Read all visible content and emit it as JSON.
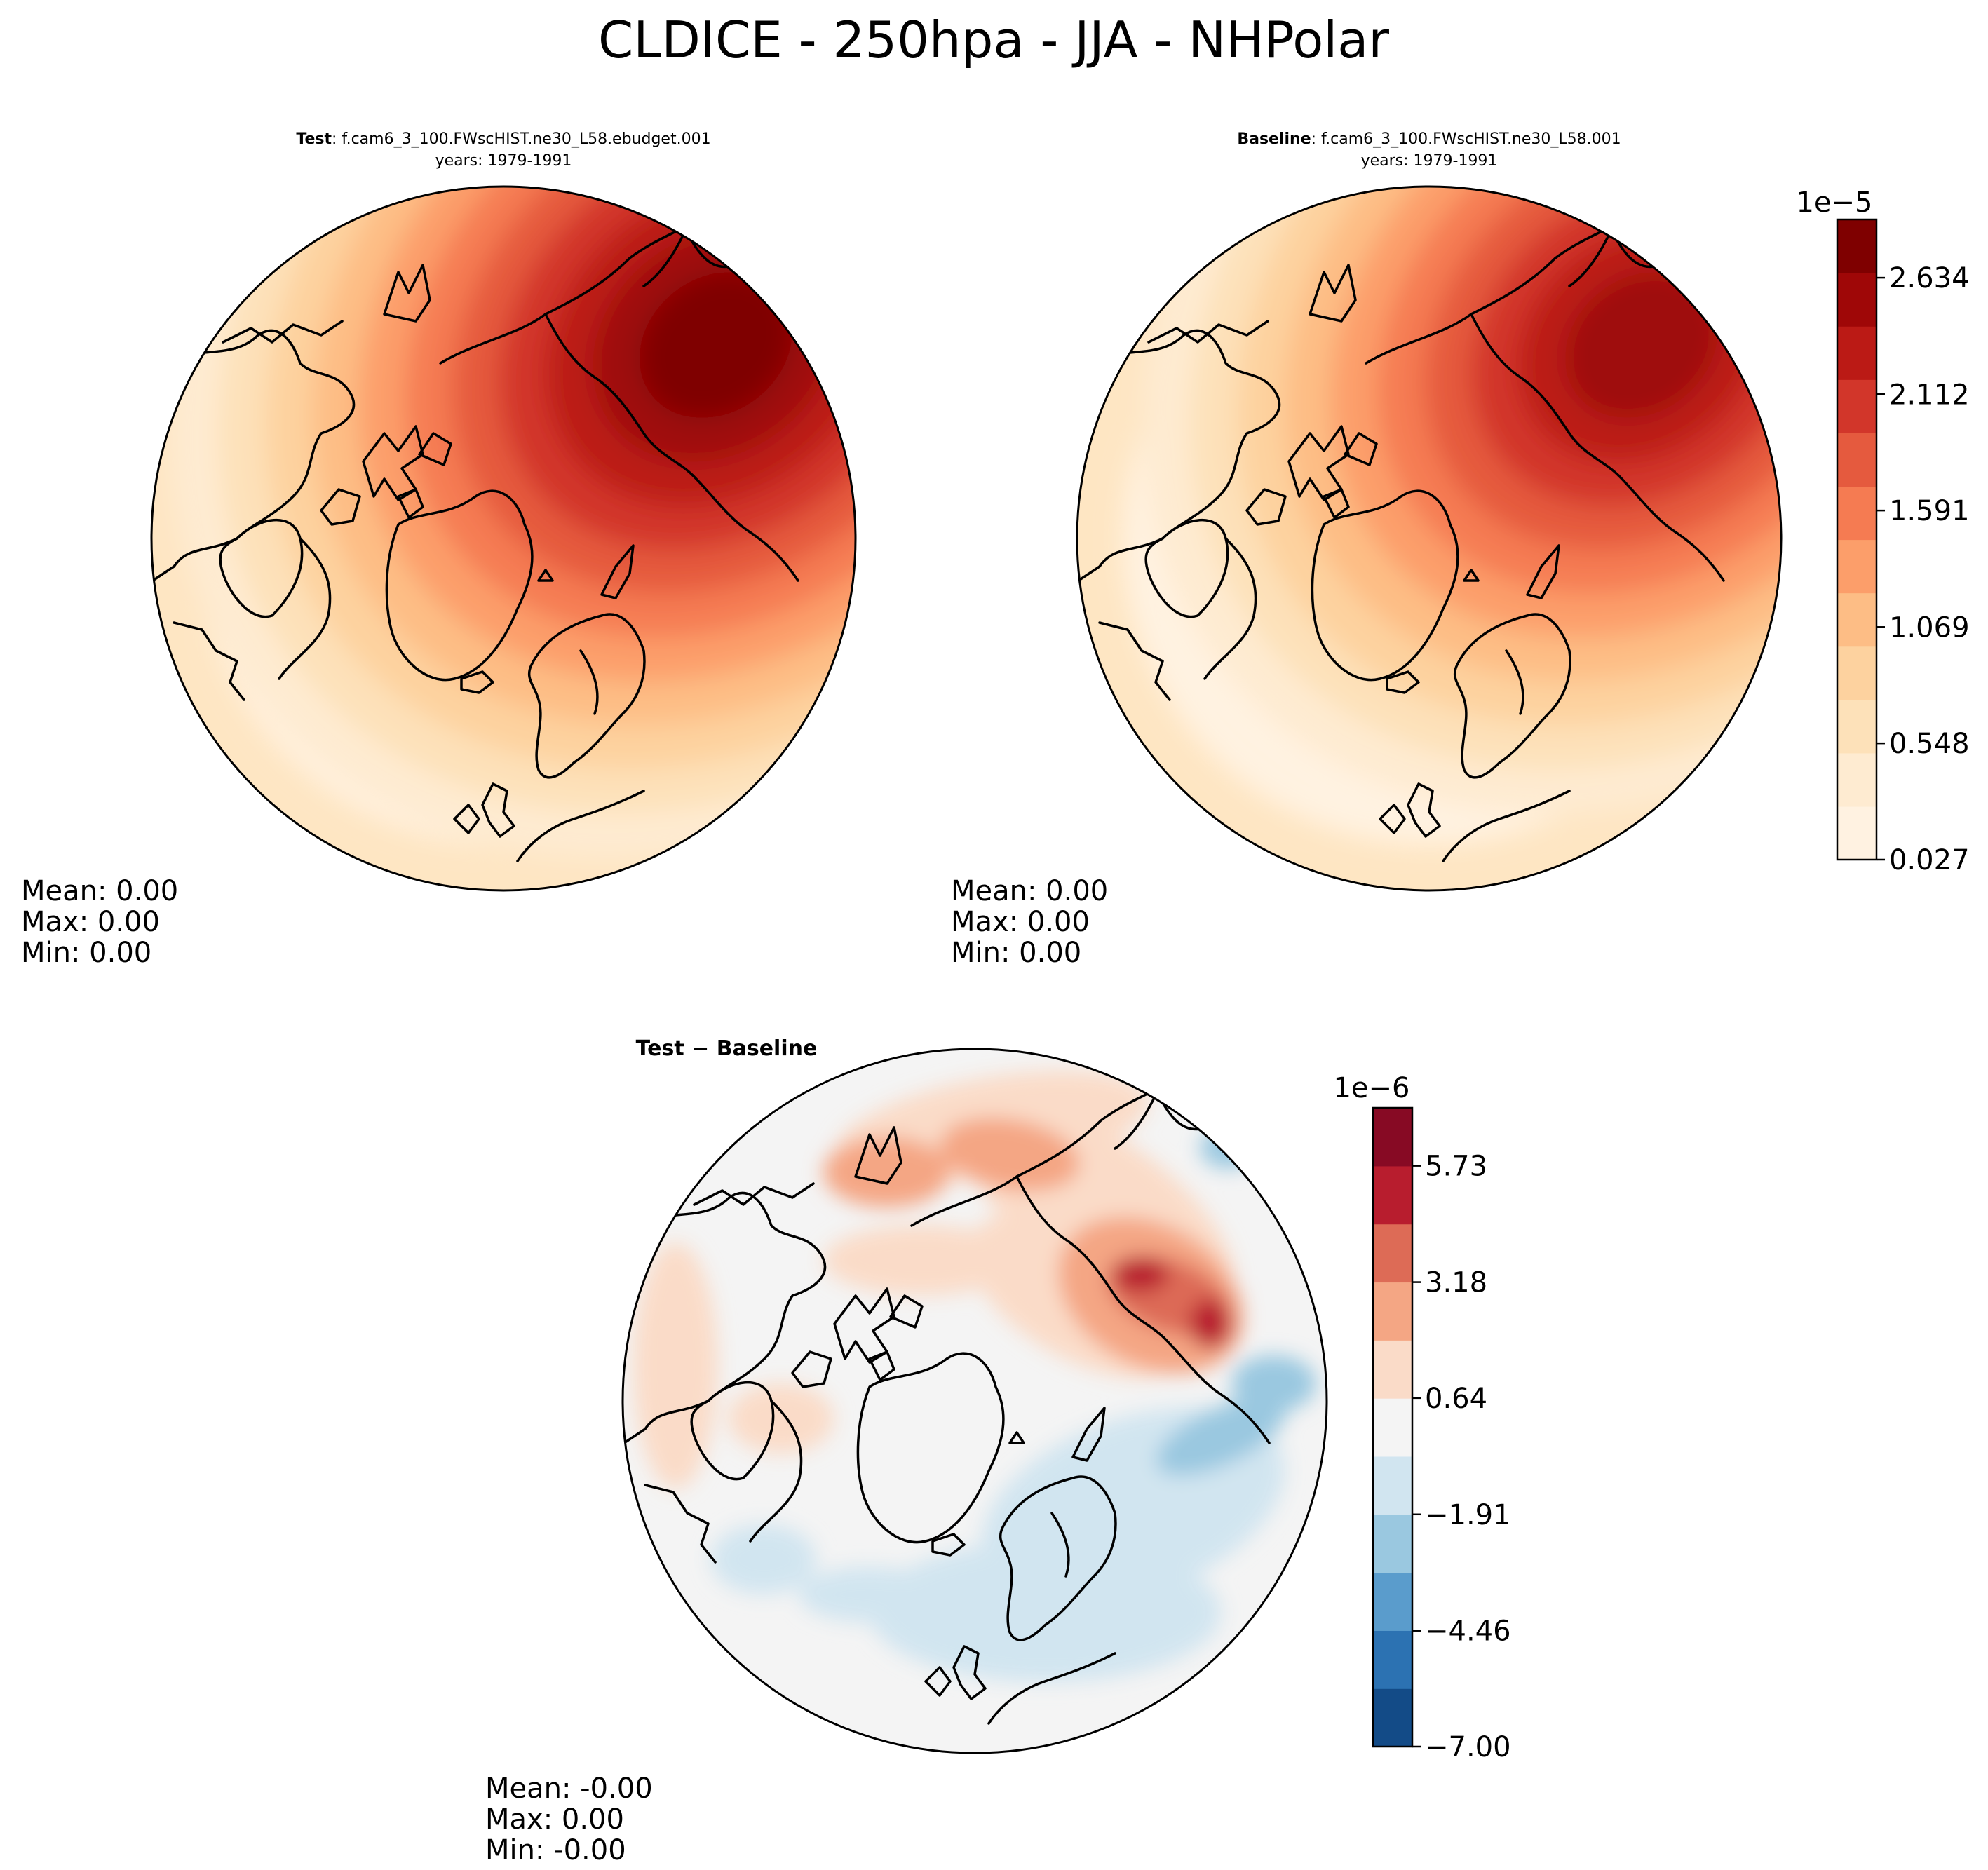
{
  "title": "CLDICE - 250hpa - JJA - NHPolar",
  "panels": [
    {
      "id": "test",
      "label": "Test",
      "case": ": f.cam6_3_100.FWscHIST.ne30_L58.ebudget.001",
      "years": "years: 1979-1991",
      "stats": [
        "Mean:  0.00",
        "Max:  0.00",
        "Min:  0.00"
      ]
    },
    {
      "id": "baseline",
      "label": "Baseline",
      "case": ": f.cam6_3_100.FWscHIST.ne30_L58.001",
      "years": "years: 1979-1991",
      "stats": [
        "Mean:  0.00",
        "Max:  0.00",
        "Min:  0.00"
      ]
    },
    {
      "id": "diff",
      "label": "Test − Baseline",
      "stats": [
        "Mean: -0.00",
        "Max:  0.00",
        "Min: -0.00"
      ]
    }
  ],
  "chart_data": [
    {
      "type": "heatmap",
      "projection": "north-polar-stereographic",
      "field": "CLDICE",
      "colorbar": {
        "cmap": "OrRd-like",
        "exponent": "1e−5",
        "range": [
          0.027,
          2.895
        ],
        "tick_values": [
          0.027,
          0.548,
          1.069,
          1.591,
          2.112,
          2.634
        ],
        "tick_labels": [
          "0.027",
          "0.548",
          "1.069",
          "1.591",
          "2.112",
          "2.634"
        ],
        "colors": [
          "#fff2e1",
          "#feebd1",
          "#fde1b9",
          "#fdd29f",
          "#fdbd85",
          "#fc9e6a",
          "#f57b52",
          "#e55a3e",
          "#d2362a",
          "#bb1a15",
          "#9f0707",
          "#7f0000"
        ]
      },
      "features": [
        {
          "panel": "test",
          "lon": 100,
          "r": 0.62,
          "level": 11,
          "spread": 0.55
        },
        {
          "panel": "baseline",
          "lon": 100,
          "r": 0.68,
          "level": 10,
          "spread": 0.5
        }
      ]
    },
    {
      "type": "heatmap",
      "projection": "north-polar-stereographic",
      "field": "CLDICE difference",
      "colorbar": {
        "cmap": "RdBu_r",
        "exponent": "1e−6",
        "range": [
          -7.0,
          7.0
        ],
        "tick_values": [
          -7.0,
          -4.46,
          -1.91,
          0.64,
          3.18,
          5.73
        ],
        "tick_labels": [
          "−7.00",
          "−4.46",
          "−1.91",
          "0.64",
          "3.18",
          "5.73"
        ],
        "colors": [
          "#134b87",
          "#2c72b2",
          "#5a9ccc",
          "#9ac8e0",
          "#d1e5f0",
          "#f4f4f4",
          "#fadbc8",
          "#f4a684",
          "#dd6b56",
          "#b81d2e",
          "#870a24"
        ]
      }
    }
  ]
}
